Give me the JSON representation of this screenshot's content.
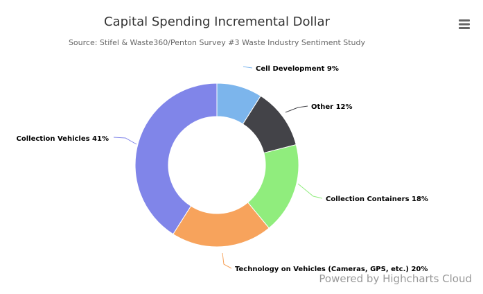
{
  "chart_data": {
    "type": "pie",
    "donut": true,
    "title": "Capital Spending Incremental Dollar",
    "subtitle": "Source: Stifel & Waste360/Penton Survey #3 Waste Industry Sentiment Study",
    "unit": "%",
    "slices": [
      {
        "label": "Cell Development",
        "value": 9,
        "color": "#7cb5ec"
      },
      {
        "label": "Other",
        "value": 12,
        "color": "#434348"
      },
      {
        "label": "Collection Containers",
        "value": 18,
        "color": "#90ed7d"
      },
      {
        "label": "Technology on Vehicles (Cameras, GPS, etc.)",
        "value": 20,
        "color": "#f7a35c"
      },
      {
        "label": "Collection Vehicles",
        "value": 41,
        "color": "#8085e9"
      }
    ]
  },
  "credits": "Powered by Highcharts Cloud",
  "menu_icon": "hamburger-menu-icon"
}
